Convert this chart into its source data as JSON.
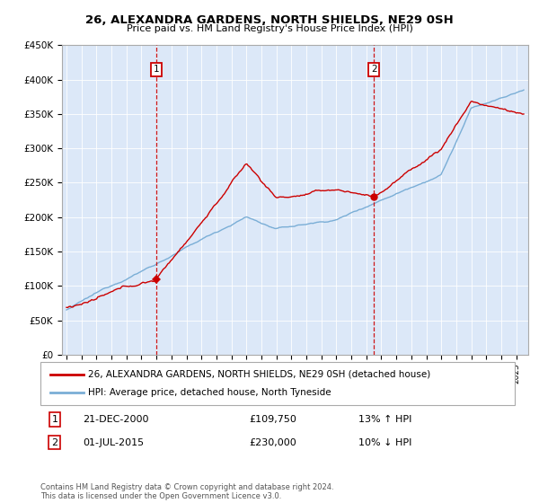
{
  "title1": "26, ALEXANDRA GARDENS, NORTH SHIELDS, NE29 0SH",
  "title2": "Price paid vs. HM Land Registry's House Price Index (HPI)",
  "legend_line1": "26, ALEXANDRA GARDENS, NORTH SHIELDS, NE29 0SH (detached house)",
  "legend_line2": "HPI: Average price, detached house, North Tyneside",
  "annotation1_label": "1",
  "annotation1_date": "21-DEC-2000",
  "annotation1_price": "£109,750",
  "annotation1_hpi": "13% ↑ HPI",
  "annotation2_label": "2",
  "annotation2_date": "01-JUL-2015",
  "annotation2_price": "£230,000",
  "annotation2_hpi": "10% ↓ HPI",
  "footer": "Contains HM Land Registry data © Crown copyright and database right 2024.\nThis data is licensed under the Open Government Licence v3.0.",
  "sale1_x": 2001.0,
  "sale1_y": 109750,
  "sale2_x": 2015.5,
  "sale2_y": 230000,
  "bg_color": "#dce8f8",
  "hpi_color": "#7aaed6",
  "price_color": "#cc0000",
  "dashed_color": "#cc0000",
  "ylim": [
    0,
    450000
  ],
  "xlim_start": 1994.7,
  "xlim_end": 2025.8,
  "yticks": [
    0,
    50000,
    100000,
    150000,
    200000,
    250000,
    300000,
    350000,
    400000,
    450000
  ],
  "ytick_labels": [
    "£0",
    "£50K",
    "£100K",
    "£150K",
    "£200K",
    "£250K",
    "£300K",
    "£350K",
    "£400K",
    "£450K"
  ],
  "xticks": [
    1995,
    1996,
    1997,
    1998,
    1999,
    2000,
    2001,
    2002,
    2003,
    2004,
    2005,
    2006,
    2007,
    2008,
    2009,
    2010,
    2011,
    2012,
    2013,
    2014,
    2015,
    2016,
    2017,
    2018,
    2019,
    2020,
    2021,
    2022,
    2023,
    2024,
    2025
  ]
}
